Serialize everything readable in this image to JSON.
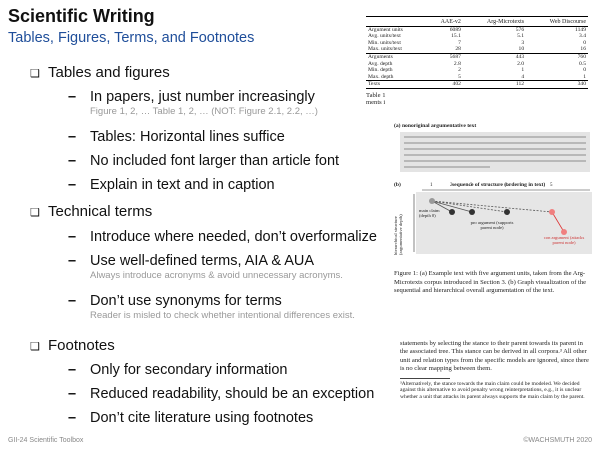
{
  "header": {
    "title": "Scientific Writing",
    "subtitle": "Tables, Figures, Terms, and Footnotes"
  },
  "sections": [
    {
      "heading": "Tables and figures",
      "items": [
        {
          "text": "In papers, just number increasingly",
          "note": "Figure 1, 2, … Table 1, 2, … (NOT: Figure 2.1, 2.2, …)"
        },
        {
          "text": "Tables: Horizontal lines suffice"
        },
        {
          "text": "No included font larger than article font"
        },
        {
          "text": "Explain in text and in caption"
        }
      ]
    },
    {
      "heading": "Technical terms",
      "items": [
        {
          "text": "Introduce where needed, don’t overformalize"
        },
        {
          "text": "Use well-defined terms, AIA & AUA",
          "note": "Always introduce acronyms & avoid unnecessary acronyms."
        },
        {
          "text": "Don’t use synonyms for terms",
          "note": "Reader is misled to check whether intentional differences exist."
        }
      ]
    },
    {
      "heading": "Footnotes",
      "items": [
        {
          "text": "Only for secondary information"
        },
        {
          "text": "Reduced readability, should be an exception"
        },
        {
          "text": "Don’t cite literature using footnotes"
        }
      ]
    }
  ],
  "footer": {
    "left": "GII-24   Scientific Toolbox",
    "right": "©WACHSMUTH 2020"
  },
  "excerpts": {
    "table": {
      "columns": [
        "AAE-v2",
        "Arg-Microtexts",
        "Web Discourse"
      ],
      "rows": [
        [
          "Argument units",
          "6089",
          "576",
          "1149"
        ],
        [
          "Avg. units/text",
          "15.1",
          "5.1",
          "3.4"
        ],
        [
          "Min. units/text",
          "7",
          "3",
          "0"
        ],
        [
          "Max. units/text",
          "28",
          "10",
          "16"
        ],
        [
          "Arguments",
          "5687",
          "443",
          "760"
        ],
        [
          "Avg. depth",
          "2.8",
          "2.0",
          "0.5"
        ],
        [
          "Min. depth",
          "2",
          "1",
          "0"
        ],
        [
          "Max. depth",
          "5",
          "4",
          "1"
        ],
        [
          "Texts",
          "402",
          "112",
          "340"
        ]
      ],
      "caption": "Table 1",
      "caption_cont": "ments i"
    },
    "figure": {
      "part_a": "(a)",
      "title_a": "nonoriginal argumentative text",
      "part_b": "(b)",
      "title_b": "sequence of structure (ordering in text)",
      "y_label": "hierarchical structure (argumentative depth)",
      "main_claim": "main claim (depth 0)",
      "pro": "pro argument (supports parent node)",
      "con": "con argument (attacks parent node)",
      "nodes": [
        "1",
        "2",
        "3",
        "4",
        "5"
      ],
      "caption": "Figure 1: (a) Example text with five argument units, taken from the Arg-Microtexts corpus introduced in Section 3. (b) Graph visualization of the sequential and hierarchical overall argumentation of the text."
    },
    "footnote": {
      "body": "statements by selecting the stance to their parent towards its parent in the associated tree. This stance can be derived in all corpora.³ All other unit and relation types from the specific models are ignored, since there is no clear mapping between them.",
      "note": "³Alternatively, the stance towards the main claim could be modeled. We decided against this alternative to avoid penalty wrong reinterpretations, e.g., it is unclear whether a unit that attacks its parent always supports the main claim by the parent."
    }
  }
}
